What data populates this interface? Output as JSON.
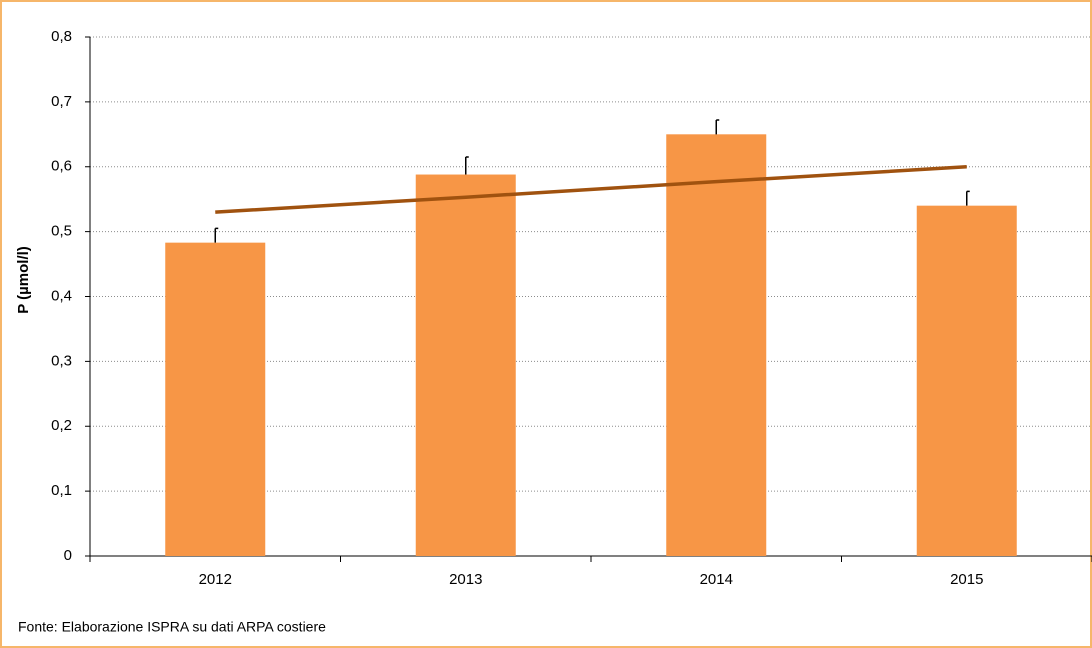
{
  "chart_data": {
    "type": "bar",
    "y_label": "P (µmol/l)",
    "source": "Fonte: Elaborazione ISPRA su dati ARPA costiere",
    "categories": [
      "2012",
      "2013",
      "2014",
      "2015"
    ],
    "values": [
      0.483,
      0.588,
      0.65,
      0.54
    ],
    "errors": [
      0.022,
      0.027,
      0.022,
      0.022
    ],
    "color": "#f79646",
    "trend": {
      "values": [
        0.53,
        0.553,
        0.577,
        0.6
      ],
      "color": "#a0520f"
    },
    "ylim": [
      0,
      0.8
    ],
    "yticks": [
      0,
      {
        "value": 0.1,
        "label": "0,1"
      },
      {
        "value": 0.2,
        "label": "0,2"
      },
      {
        "value": 0.3,
        "label": "0,3"
      },
      {
        "value": 0.4,
        "label": "0,4"
      },
      {
        "value": 0.5,
        "label": "0,5"
      },
      {
        "value": 0.6,
        "label": "0,6"
      },
      {
        "value": 0.7,
        "label": "0,7"
      },
      {
        "value": 0.8,
        "label": "0,8"
      }
    ],
    "grid": true
  }
}
